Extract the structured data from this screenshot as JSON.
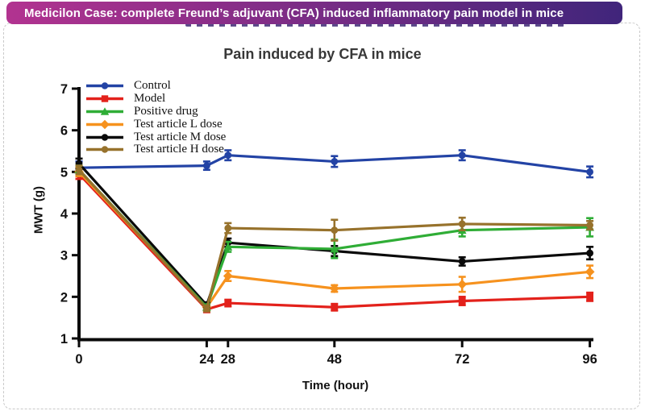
{
  "banner": {
    "text": "Medicilon Case: complete Freund’s adjuvant (CFA) induced inflammatory pain model in mice",
    "gradient_left": "#b23390",
    "gradient_right": "#40257b",
    "text_color": "#ffffff"
  },
  "chart_data": {
    "type": "line",
    "title": "Pain induced by CFA in mice",
    "xlabel": "Time (hour)",
    "ylabel": "MWT (g)",
    "x": [
      0,
      24,
      28,
      48,
      72,
      96
    ],
    "x_ticks": [
      "0",
      "24",
      "28",
      "48",
      "72",
      "96"
    ],
    "y_ticks": [
      "1",
      "2",
      "3",
      "4",
      "5",
      "6",
      "7"
    ],
    "xlim": [
      0,
      96
    ],
    "ylim": [
      1,
      7
    ],
    "grid": false,
    "legend_position": "top-left",
    "error_bars": true,
    "axis_color": "#0a0a0a",
    "series": [
      {
        "name": "Control",
        "color": "#2343a5",
        "marker": "circle",
        "values": [
          5.1,
          5.15,
          5.4,
          5.25,
          5.4,
          5.0
        ],
        "errors": [
          0.15,
          0.1,
          0.12,
          0.13,
          0.12,
          0.13
        ]
      },
      {
        "name": "Model",
        "color": "#e3211b",
        "marker": "square",
        "values": [
          4.95,
          1.7,
          1.85,
          1.75,
          1.9,
          2.0
        ],
        "errors": [
          0.12,
          0.07,
          0.08,
          0.08,
          0.1,
          0.1
        ]
      },
      {
        "name": "Positive drug",
        "color": "#2fad36",
        "marker": "triangle",
        "values": [
          5.05,
          1.75,
          3.2,
          3.15,
          3.6,
          3.67
        ],
        "errors": [
          0.1,
          0.07,
          0.12,
          0.22,
          0.15,
          0.22
        ]
      },
      {
        "name": "Test article L dose",
        "color": "#f6921e",
        "marker": "diamond",
        "values": [
          5.0,
          1.75,
          2.5,
          2.2,
          2.3,
          2.6
        ],
        "errors": [
          0.1,
          0.07,
          0.12,
          0.08,
          0.18,
          0.15
        ]
      },
      {
        "name": "Test article M dose",
        "color": "#0a0a0a",
        "marker": "circle",
        "values": [
          5.2,
          1.8,
          3.3,
          3.1,
          2.85,
          3.05
        ],
        "errors": [
          0.12,
          0.07,
          0.1,
          0.12,
          0.1,
          0.15
        ]
      },
      {
        "name": "Test article H dose",
        "color": "#97722c",
        "marker": "circle",
        "values": [
          5.05,
          1.72,
          3.65,
          3.6,
          3.75,
          3.72
        ],
        "errors": [
          0.1,
          0.07,
          0.12,
          0.25,
          0.15,
          0.1
        ]
      }
    ]
  }
}
